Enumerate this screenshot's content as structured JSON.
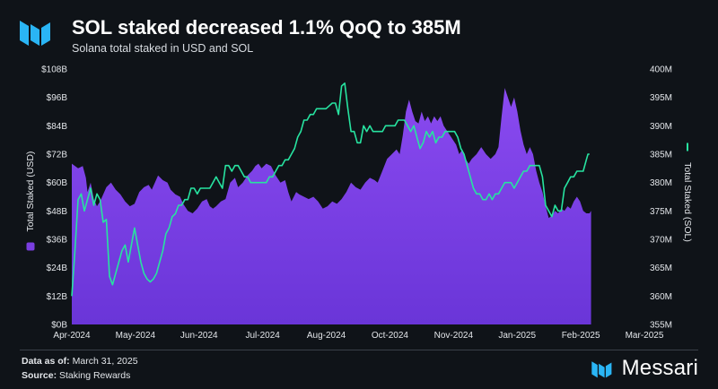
{
  "header": {
    "title": "SOL staked decreased 1.1% QoQ to 385M",
    "subtitle": "Solana total staked in USD and SOL"
  },
  "colors": {
    "background": "#0f1318",
    "usd_area": "#7a3ee0",
    "sol_line": "#27e3a0",
    "brand_blue": "#2ab5f5"
  },
  "chart_data": {
    "type": "area",
    "x_tick_labels": [
      "Apr-2024",
      "May-2024",
      "Jun-2024",
      "Jul-2024",
      "Aug-2024",
      "Oct-2024",
      "Nov-2024",
      "Jan-2025",
      "Feb-2025",
      "Mar-2025"
    ],
    "left_axis": {
      "title": "Total Staked (USD)",
      "tick_labels": [
        "$0B",
        "$12B",
        "$24B",
        "$36B",
        "$48B",
        "$60B",
        "$72B",
        "$84B",
        "$96B",
        "$108B"
      ],
      "range": [
        0,
        108
      ]
    },
    "right_axis": {
      "title": "Total Staked (SOL)",
      "tick_labels": [
        "355M",
        "360M",
        "365M",
        "370M",
        "375M",
        "380M",
        "385M",
        "390M",
        "395M",
        "400M"
      ],
      "range": [
        355,
        400
      ]
    },
    "x_range": [
      0,
      365
    ],
    "series": [
      {
        "name": "Total Staked (USD)",
        "type": "area",
        "axis": "left",
        "points": [
          [
            0,
            68
          ],
          [
            4,
            66
          ],
          [
            7,
            67
          ],
          [
            9,
            62
          ],
          [
            10,
            56
          ],
          [
            12,
            60
          ],
          [
            14,
            53
          ],
          [
            16,
            50
          ],
          [
            18,
            52
          ],
          [
            20,
            55
          ],
          [
            22,
            58
          ],
          [
            25,
            60
          ],
          [
            28,
            57
          ],
          [
            31,
            55
          ],
          [
            34,
            52
          ],
          [
            37,
            50
          ],
          [
            40,
            51
          ],
          [
            43,
            56
          ],
          [
            46,
            58
          ],
          [
            49,
            59
          ],
          [
            51,
            57
          ],
          [
            53,
            60
          ],
          [
            55,
            63
          ],
          [
            58,
            61
          ],
          [
            61,
            60
          ],
          [
            63,
            57
          ],
          [
            66,
            55
          ],
          [
            69,
            54
          ],
          [
            71,
            51
          ],
          [
            74,
            48
          ],
          [
            77,
            47
          ],
          [
            80,
            49
          ],
          [
            83,
            52
          ],
          [
            86,
            53
          ],
          [
            88,
            50
          ],
          [
            90,
            49
          ],
          [
            92,
            50
          ],
          [
            95,
            52
          ],
          [
            98,
            53
          ],
          [
            101,
            60
          ],
          [
            104,
            62
          ],
          [
            106,
            58
          ],
          [
            109,
            60
          ],
          [
            112,
            63
          ],
          [
            115,
            65
          ],
          [
            117,
            67
          ],
          [
            119,
            68
          ],
          [
            121,
            66
          ],
          [
            124,
            68
          ],
          [
            127,
            67
          ],
          [
            130,
            63
          ],
          [
            133,
            60
          ],
          [
            136,
            61
          ],
          [
            138,
            56
          ],
          [
            140,
            52
          ],
          [
            143,
            56
          ],
          [
            145,
            55
          ],
          [
            148,
            54
          ],
          [
            151,
            53
          ],
          [
            154,
            54
          ],
          [
            157,
            52
          ],
          [
            160,
            49
          ],
          [
            163,
            50
          ],
          [
            166,
            52
          ],
          [
            169,
            51
          ],
          [
            172,
            53
          ],
          [
            175,
            56
          ],
          [
            178,
            60
          ],
          [
            181,
            58
          ],
          [
            184,
            57
          ],
          [
            187,
            60
          ],
          [
            190,
            62
          ],
          [
            193,
            61
          ],
          [
            195,
            60
          ],
          [
            198,
            65
          ],
          [
            201,
            70
          ],
          [
            204,
            72
          ],
          [
            207,
            74
          ],
          [
            209,
            72
          ],
          [
            211,
            80
          ],
          [
            213,
            90
          ],
          [
            215,
            95
          ],
          [
            217,
            90
          ],
          [
            219,
            86
          ],
          [
            221,
            85
          ],
          [
            223,
            90
          ],
          [
            225,
            86
          ],
          [
            227,
            88
          ],
          [
            229,
            85
          ],
          [
            231,
            88
          ],
          [
            233,
            86
          ],
          [
            235,
            88
          ],
          [
            237,
            84
          ],
          [
            239,
            82
          ],
          [
            241,
            80
          ],
          [
            243,
            78
          ],
          [
            245,
            76
          ],
          [
            247,
            72
          ],
          [
            249,
            74
          ],
          [
            251,
            70
          ],
          [
            253,
            68
          ],
          [
            255,
            70
          ],
          [
            258,
            72
          ],
          [
            261,
            75
          ],
          [
            264,
            72
          ],
          [
            267,
            70
          ],
          [
            270,
            72
          ],
          [
            272,
            75
          ],
          [
            274,
            88
          ],
          [
            276,
            100
          ],
          [
            278,
            96
          ],
          [
            280,
            92
          ],
          [
            282,
            96
          ],
          [
            284,
            90
          ],
          [
            286,
            82
          ],
          [
            288,
            76
          ],
          [
            290,
            72
          ],
          [
            292,
            75
          ],
          [
            294,
            72
          ],
          [
            296,
            65
          ],
          [
            298,
            60
          ],
          [
            300,
            56
          ],
          [
            302,
            50
          ],
          [
            304,
            45
          ],
          [
            306,
            46
          ],
          [
            308,
            48
          ],
          [
            310,
            47
          ],
          [
            312,
            49
          ],
          [
            314,
            48
          ],
          [
            316,
            50
          ],
          [
            318,
            49
          ],
          [
            320,
            52
          ],
          [
            322,
            54
          ],
          [
            324,
            52
          ],
          [
            326,
            48
          ],
          [
            328,
            47
          ],
          [
            330,
            47
          ],
          [
            331,
            48
          ]
        ]
      },
      {
        "name": "Total Staked (SOL)",
        "type": "line",
        "axis": "right",
        "points": [
          [
            0,
            360
          ],
          [
            2,
            368
          ],
          [
            4,
            377
          ],
          [
            6,
            378
          ],
          [
            8,
            375
          ],
          [
            10,
            377
          ],
          [
            12,
            379
          ],
          [
            14,
            376
          ],
          [
            16,
            378
          ],
          [
            18,
            377
          ],
          [
            20,
            373
          ],
          [
            22,
            373.5
          ],
          [
            24,
            363.5
          ],
          [
            26,
            362
          ],
          [
            28,
            364
          ],
          [
            30,
            366
          ],
          [
            32,
            368
          ],
          [
            34,
            369
          ],
          [
            36,
            366
          ],
          [
            38,
            369
          ],
          [
            40,
            372
          ],
          [
            42,
            369
          ],
          [
            44,
            366
          ],
          [
            46,
            364
          ],
          [
            48,
            363
          ],
          [
            50,
            362.5
          ],
          [
            52,
            363
          ],
          [
            54,
            364
          ],
          [
            56,
            366
          ],
          [
            58,
            368
          ],
          [
            60,
            371
          ],
          [
            62,
            372
          ],
          [
            64,
            374
          ],
          [
            66,
            374.5
          ],
          [
            68,
            376
          ],
          [
            70,
            376
          ],
          [
            72,
            377
          ],
          [
            74,
            377
          ],
          [
            76,
            379
          ],
          [
            78,
            379
          ],
          [
            80,
            378
          ],
          [
            82,
            379
          ],
          [
            84,
            379
          ],
          [
            86,
            379
          ],
          [
            88,
            379
          ],
          [
            90,
            380
          ],
          [
            92,
            381
          ],
          [
            94,
            380
          ],
          [
            96,
            379
          ],
          [
            98,
            383
          ],
          [
            100,
            383
          ],
          [
            102,
            382
          ],
          [
            104,
            383
          ],
          [
            106,
            383
          ],
          [
            108,
            382
          ],
          [
            110,
            381
          ],
          [
            112,
            381
          ],
          [
            114,
            380
          ],
          [
            116,
            380
          ],
          [
            118,
            380
          ],
          [
            120,
            380
          ],
          [
            122,
            380
          ],
          [
            124,
            380
          ],
          [
            126,
            381
          ],
          [
            128,
            381
          ],
          [
            130,
            382
          ],
          [
            132,
            383
          ],
          [
            134,
            383
          ],
          [
            136,
            384
          ],
          [
            138,
            384
          ],
          [
            140,
            385
          ],
          [
            142,
            386
          ],
          [
            144,
            388
          ],
          [
            146,
            389
          ],
          [
            148,
            391
          ],
          [
            150,
            391
          ],
          [
            152,
            392
          ],
          [
            154,
            392
          ],
          [
            156,
            393
          ],
          [
            158,
            393
          ],
          [
            160,
            393
          ],
          [
            162,
            393
          ],
          [
            164,
            393.5
          ],
          [
            166,
            394
          ],
          [
            168,
            394
          ],
          [
            170,
            392
          ],
          [
            172,
            397
          ],
          [
            174,
            397.5
          ],
          [
            176,
            393
          ],
          [
            178,
            389
          ],
          [
            180,
            389
          ],
          [
            182,
            387
          ],
          [
            184,
            387
          ],
          [
            186,
            390
          ],
          [
            188,
            389
          ],
          [
            190,
            390
          ],
          [
            192,
            389
          ],
          [
            194,
            389
          ],
          [
            196,
            389
          ],
          [
            198,
            389
          ],
          [
            200,
            390
          ],
          [
            202,
            390
          ],
          [
            204,
            390
          ],
          [
            206,
            390
          ],
          [
            208,
            391
          ],
          [
            210,
            391
          ],
          [
            212,
            391
          ],
          [
            214,
            390
          ],
          [
            216,
            389
          ],
          [
            218,
            390
          ],
          [
            220,
            388
          ],
          [
            222,
            386
          ],
          [
            224,
            387
          ],
          [
            226,
            389
          ],
          [
            228,
            388
          ],
          [
            230,
            389
          ],
          [
            232,
            387
          ],
          [
            234,
            388
          ],
          [
            236,
            388
          ],
          [
            238,
            389
          ],
          [
            240,
            389
          ],
          [
            242,
            389
          ],
          [
            244,
            389
          ],
          [
            246,
            388
          ],
          [
            248,
            386
          ],
          [
            250,
            385
          ],
          [
            252,
            383
          ],
          [
            254,
            381
          ],
          [
            256,
            379
          ],
          [
            258,
            378
          ],
          [
            260,
            378
          ],
          [
            262,
            377
          ],
          [
            264,
            377
          ],
          [
            266,
            378
          ],
          [
            268,
            377
          ],
          [
            270,
            378
          ],
          [
            272,
            378
          ],
          [
            274,
            379
          ],
          [
            276,
            380
          ],
          [
            278,
            380
          ],
          [
            280,
            380
          ],
          [
            282,
            379
          ],
          [
            284,
            380
          ],
          [
            286,
            381
          ],
          [
            288,
            382
          ],
          [
            290,
            382
          ],
          [
            292,
            383
          ],
          [
            294,
            383
          ],
          [
            296,
            383
          ],
          [
            298,
            383
          ],
          [
            300,
            381
          ],
          [
            302,
            376
          ],
          [
            304,
            375
          ],
          [
            306,
            374
          ],
          [
            308,
            376
          ],
          [
            310,
            375
          ],
          [
            312,
            375
          ],
          [
            314,
            379
          ],
          [
            316,
            380
          ],
          [
            318,
            381
          ],
          [
            320,
            381
          ],
          [
            322,
            382
          ],
          [
            324,
            382
          ],
          [
            326,
            382
          ],
          [
            328,
            384
          ],
          [
            329,
            385
          ],
          [
            330,
            385
          ]
        ]
      }
    ]
  },
  "footer": {
    "data_as_of_label": "Data as of:",
    "data_as_of_value": "March 31, 2025",
    "source_label": "Source:",
    "source_value": "Staking Rewards",
    "brand_name": "Messari"
  }
}
